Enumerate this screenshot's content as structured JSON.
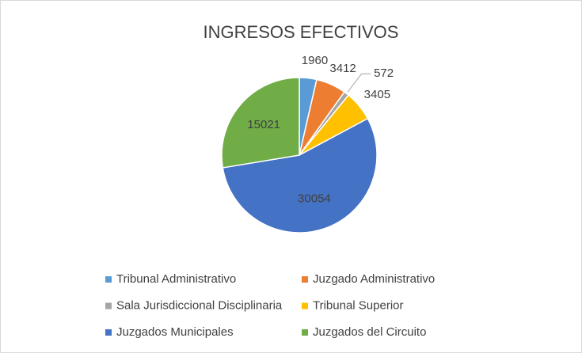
{
  "chart_data": {
    "type": "pie",
    "title": "INGRESOS EFECTIVOS",
    "categories": [
      "Tribunal Administrativo",
      "Juzgado Administrativo",
      "Sala Jurisdiccional Disciplinaria",
      "Tribunal Superior",
      "Juzgados Municipales",
      "Juzgados del Circuito"
    ],
    "values": [
      1960,
      3412,
      572,
      3405,
      30054,
      15021
    ],
    "colors": [
      "#5b9bd5",
      "#ed7d31",
      "#a5a5a5",
      "#ffc000",
      "#4472c4",
      "#70ad47"
    ],
    "legend": "bottom"
  }
}
